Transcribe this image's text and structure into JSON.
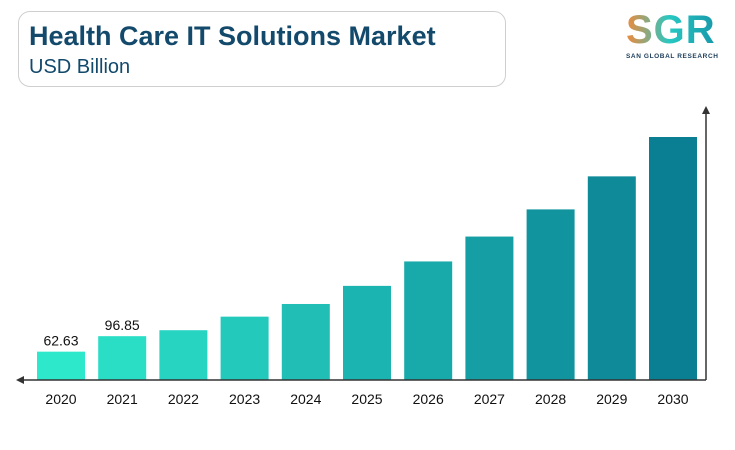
{
  "header": {
    "title": "Health Care IT Solutions Market",
    "subtitle": "USD Billion"
  },
  "logo": {
    "mark": "SGR",
    "name": "SAN GLOBAL RESEARCH"
  },
  "colors": {
    "title": "#13496b",
    "bar_start": "#2ee8cc",
    "bar_end": "#0a7f93",
    "axis": "#333333"
  },
  "chart_data": {
    "type": "bar",
    "title": "Health Care IT Solutions Market",
    "ylabel": "USD Billion",
    "xlabel": "",
    "categories": [
      "2020",
      "2021",
      "2022",
      "2023",
      "2024",
      "2025",
      "2026",
      "2027",
      "2028",
      "2029",
      "2030"
    ],
    "values": [
      62.63,
      96.85,
      110,
      140,
      168,
      208,
      262,
      317,
      377,
      450,
      537
    ],
    "data_labels": [
      "62.63",
      "96.85",
      "",
      "",
      "",
      "",
      "",
      "",
      "",
      "",
      ""
    ],
    "ylim": [
      0,
      600
    ],
    "grid": false,
    "legend": "none"
  }
}
